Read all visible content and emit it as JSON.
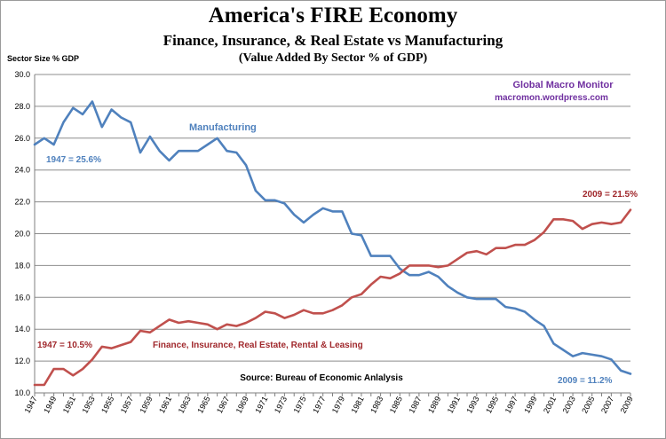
{
  "chart_data": {
    "type": "line",
    "title": "America's FIRE Economy",
    "subtitle": "Finance, Insurance, & Real Estate vs Manufacturing",
    "note": "(Value Added By Sector % of GDP)",
    "ylabel": "Sector Size % GDP",
    "ylim": [
      10.0,
      30.0
    ],
    "yticks": [
      "10.0",
      "12.0",
      "14.0",
      "16.0",
      "18.0",
      "20.0",
      "22.0",
      "24.0",
      "26.0",
      "28.0",
      "30.0"
    ],
    "xticks": [
      "1947",
      "1949",
      "1951",
      "1953",
      "1955",
      "1957",
      "1959",
      "1961",
      "1963",
      "1965",
      "1967",
      "1969",
      "1971",
      "1973",
      "1975",
      "1977",
      "1979",
      "1981",
      "1983",
      "1985",
      "1987",
      "1989",
      "1991",
      "1993",
      "1995",
      "1997",
      "1999",
      "2001",
      "2003",
      "2005",
      "2007",
      "2009"
    ],
    "grid": true,
    "x": [
      1947,
      1948,
      1949,
      1950,
      1951,
      1952,
      1953,
      1954,
      1955,
      1956,
      1957,
      1958,
      1959,
      1960,
      1961,
      1962,
      1963,
      1964,
      1965,
      1966,
      1967,
      1968,
      1969,
      1970,
      1971,
      1972,
      1973,
      1974,
      1975,
      1976,
      1977,
      1978,
      1979,
      1980,
      1981,
      1982,
      1983,
      1984,
      1985,
      1986,
      1987,
      1988,
      1989,
      1990,
      1991,
      1992,
      1993,
      1994,
      1995,
      1996,
      1997,
      1998,
      1999,
      2000,
      2001,
      2002,
      2003,
      2004,
      2005,
      2006,
      2007,
      2008,
      2009
    ],
    "series": [
      {
        "name": "Manufacturing",
        "color": "#4f81bd",
        "values": [
          25.6,
          26.0,
          25.6,
          27.0,
          27.9,
          27.5,
          28.3,
          26.7,
          27.8,
          27.3,
          27.0,
          25.1,
          26.1,
          25.2,
          24.6,
          25.2,
          25.2,
          25.2,
          25.6,
          26.0,
          25.2,
          25.1,
          24.3,
          22.7,
          22.1,
          22.1,
          21.9,
          21.2,
          20.7,
          21.2,
          21.6,
          21.4,
          21.4,
          20.0,
          19.9,
          18.6,
          18.6,
          18.6,
          17.8,
          17.4,
          17.4,
          17.6,
          17.3,
          16.7,
          16.3,
          16.0,
          15.9,
          15.9,
          15.9,
          15.4,
          15.3,
          15.1,
          14.6,
          14.2,
          13.1,
          12.7,
          12.3,
          12.5,
          12.4,
          12.3,
          12.1,
          11.4,
          11.2
        ]
      },
      {
        "name": "Finance, Insurance, Real Estate, Rental & Leasing",
        "color": "#c0504d",
        "values": [
          10.5,
          10.5,
          11.5,
          11.5,
          11.1,
          11.5,
          12.1,
          12.9,
          12.8,
          13.0,
          13.2,
          13.9,
          13.8,
          14.2,
          14.6,
          14.4,
          14.5,
          14.4,
          14.3,
          14.0,
          14.3,
          14.2,
          14.4,
          14.7,
          15.1,
          15.0,
          14.7,
          14.9,
          15.2,
          15.0,
          15.0,
          15.2,
          15.5,
          16.0,
          16.2,
          16.8,
          17.3,
          17.2,
          17.5,
          18.0,
          18.0,
          18.0,
          17.9,
          18.0,
          18.4,
          18.8,
          18.9,
          18.7,
          19.1,
          19.1,
          19.3,
          19.3,
          19.6,
          20.1,
          20.9,
          20.9,
          20.8,
          20.3,
          20.6,
          20.7,
          20.6,
          20.7,
          21.5
        ]
      }
    ],
    "annotations": {
      "manufacturing_label": "Manufacturing",
      "mfg_start": "1947 = 25.6%",
      "mfg_end": "2009 = 11.2%",
      "fire_label": "Finance, Insurance, Real Estate, Rental  & Leasing",
      "fire_start": "1947 = 10.5%",
      "fire_end": "2009 = 21.5%",
      "watermark_line1": "Global Macro Monitor",
      "watermark_line2": "macromon.wordpress.com",
      "source": "Source:  Bureau of Economic Anlalysis"
    },
    "colors": {
      "watermark": "#7030a0",
      "mfg_label": "#4f81bd",
      "fire_label": "#a0282c"
    }
  }
}
